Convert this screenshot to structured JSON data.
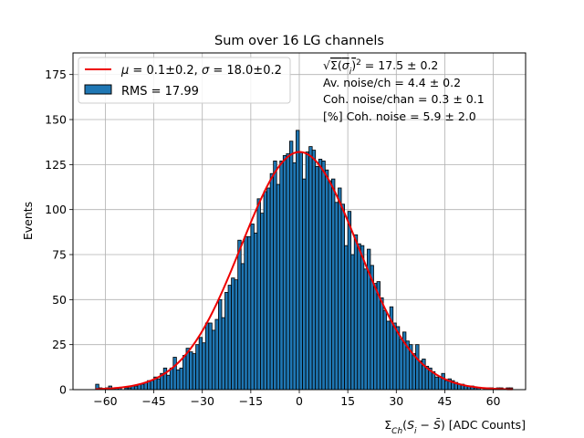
{
  "chart_data": {
    "type": "bar",
    "title": "Sum over 16 LG channels",
    "xlabel": "Σ_Ch(S_i − S̄) [ADC Counts]",
    "ylabel": "Events",
    "xlim": [
      -70,
      70
    ],
    "ylim": [
      0,
      187
    ],
    "xticks": [
      -60,
      -45,
      -30,
      -15,
      0,
      15,
      30,
      45,
      60
    ],
    "xtick_labels": [
      "−60",
      "−45",
      "−30",
      "−15",
      "0",
      "15",
      "30",
      "45",
      "60"
    ],
    "yticks": [
      0,
      25,
      50,
      75,
      100,
      125,
      150,
      175
    ],
    "ytick_labels": [
      "0",
      "25",
      "50",
      "75",
      "100",
      "125",
      "150",
      "175"
    ],
    "grid": true,
    "legend_position": "top-left",
    "bin_start": -63,
    "bin_width": 1,
    "values": [
      3,
      1,
      0,
      1,
      2,
      1,
      1,
      1,
      0,
      1,
      1,
      2,
      2,
      3,
      3,
      4,
      5,
      5,
      7,
      6,
      9,
      12,
      8,
      12,
      18,
      11,
      12,
      19,
      23,
      21,
      20,
      25,
      29,
      26,
      37,
      37,
      33,
      39,
      50,
      40,
      54,
      58,
      62,
      61,
      83,
      70,
      85,
      85,
      92,
      87,
      106,
      98,
      110,
      112,
      120,
      127,
      114,
      127,
      130,
      131,
      138,
      126,
      144,
      132,
      117,
      132,
      135,
      133,
      124,
      128,
      127,
      122,
      116,
      117,
      104,
      112,
      103,
      80,
      99,
      75,
      86,
      81,
      80,
      67,
      78,
      69,
      59,
      60,
      51,
      44,
      38,
      46,
      37,
      35,
      28,
      32,
      27,
      25,
      20,
      25,
      16,
      17,
      13,
      12,
      10,
      7,
      7,
      9,
      5,
      6,
      5,
      4,
      3,
      3,
      2,
      2,
      2,
      1,
      1,
      0,
      1,
      1,
      1,
      0,
      1,
      1,
      0,
      1,
      1,
      0
    ],
    "fit": {
      "type": "gaussian",
      "mu": 0.1,
      "sigma": 18.0,
      "amplitude": 132
    },
    "legend": [
      {
        "label": "μ = 0.1±0.2, σ = 18.0±0.2",
        "color": "#ee0000",
        "kind": "line"
      },
      {
        "label": "RMS = 17.99",
        "color": "#1f77b4",
        "kind": "patch"
      }
    ],
    "annotations": [
      "√Σ(σ_i)² = 17.5 ± 0.2",
      "Av. noise/ch = 4.4 ± 0.2",
      "Coh. noise/chan = 0.3 ± 0.1",
      "[%] Coh. noise = 5.9 ± 2.0"
    ],
    "colors": {
      "bar_fill": "#1f77b4",
      "bar_edge": "#000000",
      "fit_line": "#ee0000",
      "grid": "#b0b0b0"
    }
  }
}
